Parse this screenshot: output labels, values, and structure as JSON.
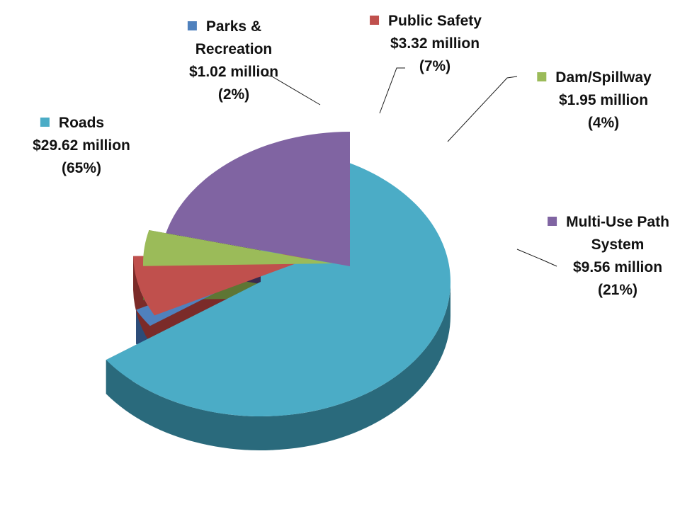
{
  "chart_data": {
    "type": "pie",
    "title": "",
    "units": "million USD",
    "series": [
      {
        "name": "Roads",
        "value": 29.62,
        "percent": 65,
        "color": "#4BACC6",
        "side_color": "#2A6A7C",
        "lines": [
          "Roads",
          "$29.62 million",
          "(65%)"
        ]
      },
      {
        "name": "Parks & Recreation",
        "value": 1.02,
        "percent": 2,
        "color": "#4F81BD",
        "side_color": "#2C4C78",
        "lines": [
          "Parks &",
          "Recreation",
          "$1.02 million",
          "(2%)"
        ]
      },
      {
        "name": "Public Safety",
        "value": 3.32,
        "percent": 7,
        "color": "#C0504D",
        "side_color": "#7B2B29",
        "lines": [
          "Public Safety",
          "$3.32 million",
          "(7%)"
        ]
      },
      {
        "name": "Dam/Spillway",
        "value": 1.95,
        "percent": 4,
        "color": "#9BBB59",
        "side_color": "#5E7634",
        "lines": [
          "Dam/Spillway",
          "$1.95 million",
          "(4%)"
        ]
      },
      {
        "name": "Multi-Use Path System",
        "value": 9.56,
        "percent": 21,
        "color": "#8064A2",
        "side_color": "#3A2A4E",
        "lines": [
          "Multi-Use Path",
          "System",
          "$9.56 million",
          "(21%)"
        ]
      }
    ],
    "legend": "inline-with-labels"
  }
}
